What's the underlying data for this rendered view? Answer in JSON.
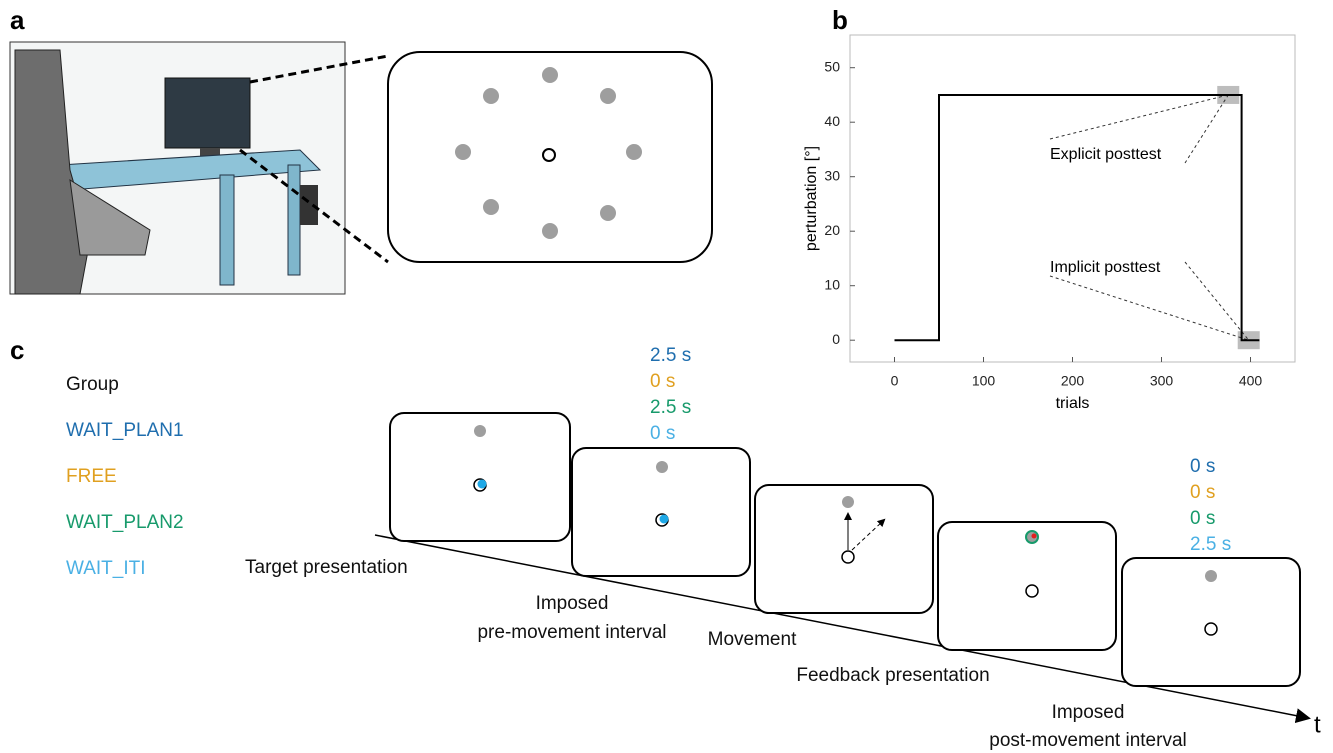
{
  "panel_letters": {
    "a": "a",
    "b": "b",
    "c": "c"
  },
  "chart_data": {
    "type": "line",
    "xlabel": "trials",
    "ylabel": "perturbation [°]",
    "xlim": [
      -50,
      450
    ],
    "ylim": [
      -4,
      56
    ],
    "xticks": [
      0,
      100,
      200,
      300,
      400
    ],
    "yticks": [
      0,
      10,
      20,
      30,
      40,
      50
    ],
    "x": [
      0,
      50,
      50,
      390,
      390,
      410
    ],
    "series": [
      {
        "color": "#000000",
        "values": [
          0,
          0,
          45,
          45,
          0,
          0
        ]
      }
    ],
    "annotations": [
      {
        "text": "Explicit posttest",
        "x": 375,
        "y": 45
      },
      {
        "text": "Implicit posttest",
        "x": 398,
        "y": 0
      }
    ]
  },
  "panel_c": {
    "group_header": "Group",
    "groups": [
      {
        "name": "WAIT_PLAN1",
        "color": "#1f6eae"
      },
      {
        "name": "FREE",
        "color": "#e0a020"
      },
      {
        "name": "WAIT_PLAN2",
        "color": "#179a6b"
      },
      {
        "name": "WAIT_ITI",
        "color": "#4ab0e4"
      }
    ],
    "pre_movement_durations": [
      "2.5 s",
      "0 s",
      "2.5 s",
      "0 s"
    ],
    "post_movement_durations": [
      "0 s",
      "0 s",
      "0 s",
      "2.5 s"
    ],
    "stages": {
      "target": "Target presentation",
      "pre_movement": [
        "Imposed",
        "pre-movement interval"
      ],
      "movement": "Movement",
      "feedback": "Feedback presentation",
      "post_movement": [
        "Imposed",
        "post-movement interval"
      ]
    },
    "time_axis": "t"
  }
}
